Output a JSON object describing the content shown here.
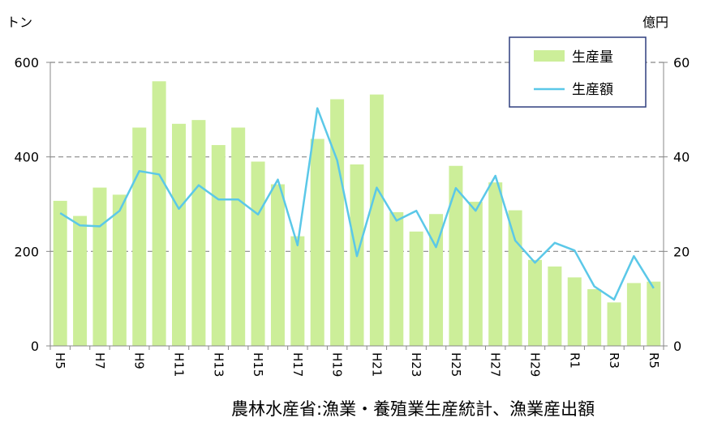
{
  "chart_data": {
    "type": "bar+line",
    "title": "",
    "y_left_unit": "トン",
    "y_right_unit": "億円",
    "y_left_lim": [
      0,
      600
    ],
    "y_right_lim": [
      0,
      60
    ],
    "y_left_ticks": [
      0,
      200,
      400,
      600
    ],
    "y_right_ticks": [
      0,
      20,
      40,
      60
    ],
    "grid": "horizontal-dashed",
    "legend_position": "top-right",
    "categories": [
      "H5",
      "H6",
      "H7",
      "H8",
      "H9",
      "H10",
      "H11",
      "H12",
      "H13",
      "H14",
      "H15",
      "H16",
      "H17",
      "H18",
      "H19",
      "H20",
      "H21",
      "H22",
      "H23",
      "H24",
      "H25",
      "H26",
      "H27",
      "H28",
      "H29",
      "H30",
      "R1",
      "R2",
      "R3",
      "R4",
      "R5"
    ],
    "x_tick_labels": [
      "H5",
      "H7",
      "H9",
      "H11",
      "H13",
      "H15",
      "H17",
      "H19",
      "H21",
      "H23",
      "H25",
      "H27",
      "H29",
      "R1",
      "R3",
      "R5"
    ],
    "series": [
      {
        "name": "生産量",
        "type": "bar",
        "axis": "left",
        "color": "#ccee99",
        "values": [
          307,
          275,
          335,
          320,
          462,
          560,
          470,
          478,
          425,
          462,
          390,
          342,
          232,
          438,
          522,
          384,
          532,
          283,
          242,
          279,
          381,
          305,
          346,
          287,
          182,
          168,
          145,
          120,
          92,
          133,
          136
        ]
      },
      {
        "name": "生産額",
        "type": "line",
        "axis": "right",
        "color": "#5bc8e8",
        "values": [
          28.1,
          25.5,
          25.3,
          28.6,
          37.0,
          36.3,
          29.0,
          34.0,
          31.0,
          31.0,
          27.8,
          35.2,
          21.3,
          50.3,
          39.3,
          19.0,
          33.5,
          26.5,
          28.6,
          20.9,
          33.4,
          28.6,
          36.0,
          22.3,
          17.6,
          21.8,
          20.2,
          12.6,
          9.8,
          19.0,
          12.2
        ]
      }
    ]
  },
  "source_note": "農林水産省:漁業・養殖業生産統計、漁業産出額"
}
